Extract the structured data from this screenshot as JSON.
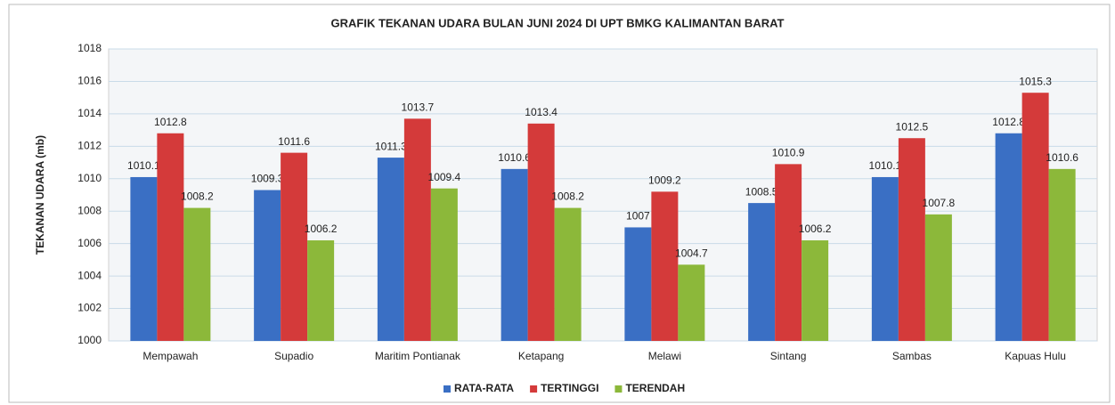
{
  "chart_data": {
    "type": "bar",
    "title": "GRAFIK TEKANAN UDARA BULAN JUNI 2024 DI UPT BMKG KALIMANTAN BARAT",
    "y_label": "TEKANAN UDARA (mb)",
    "categories": [
      "Mempawah",
      "Supadio",
      "Maritim Pontianak",
      "Ketapang",
      "Melawi",
      "Sintang",
      "Sambas",
      "Kapuas Hulu"
    ],
    "series": [
      {
        "name": "RATA-RATA",
        "color": "#3a6fc4",
        "values": [
          1010.1,
          1009.3,
          1011.3,
          1010.6,
          1007,
          1008.5,
          1010.1,
          1012.8
        ]
      },
      {
        "name": "TERTINGGI",
        "color": "#d43a3a",
        "values": [
          1012.8,
          1011.6,
          1013.7,
          1013.4,
          1009.2,
          1010.9,
          1012.5,
          1015.3
        ]
      },
      {
        "name": "TERENDAH",
        "color": "#8cb83a",
        "values": [
          1008.2,
          1006.2,
          1009.4,
          1008.2,
          1004.7,
          1006.2,
          1007.8,
          1010.6
        ]
      }
    ],
    "ylim": [
      1000,
      1018
    ],
    "yticks": [
      1000,
      1002,
      1004,
      1006,
      1008,
      1010,
      1012,
      1014,
      1016,
      1018
    ],
    "grid": true,
    "legend": "bottom"
  }
}
